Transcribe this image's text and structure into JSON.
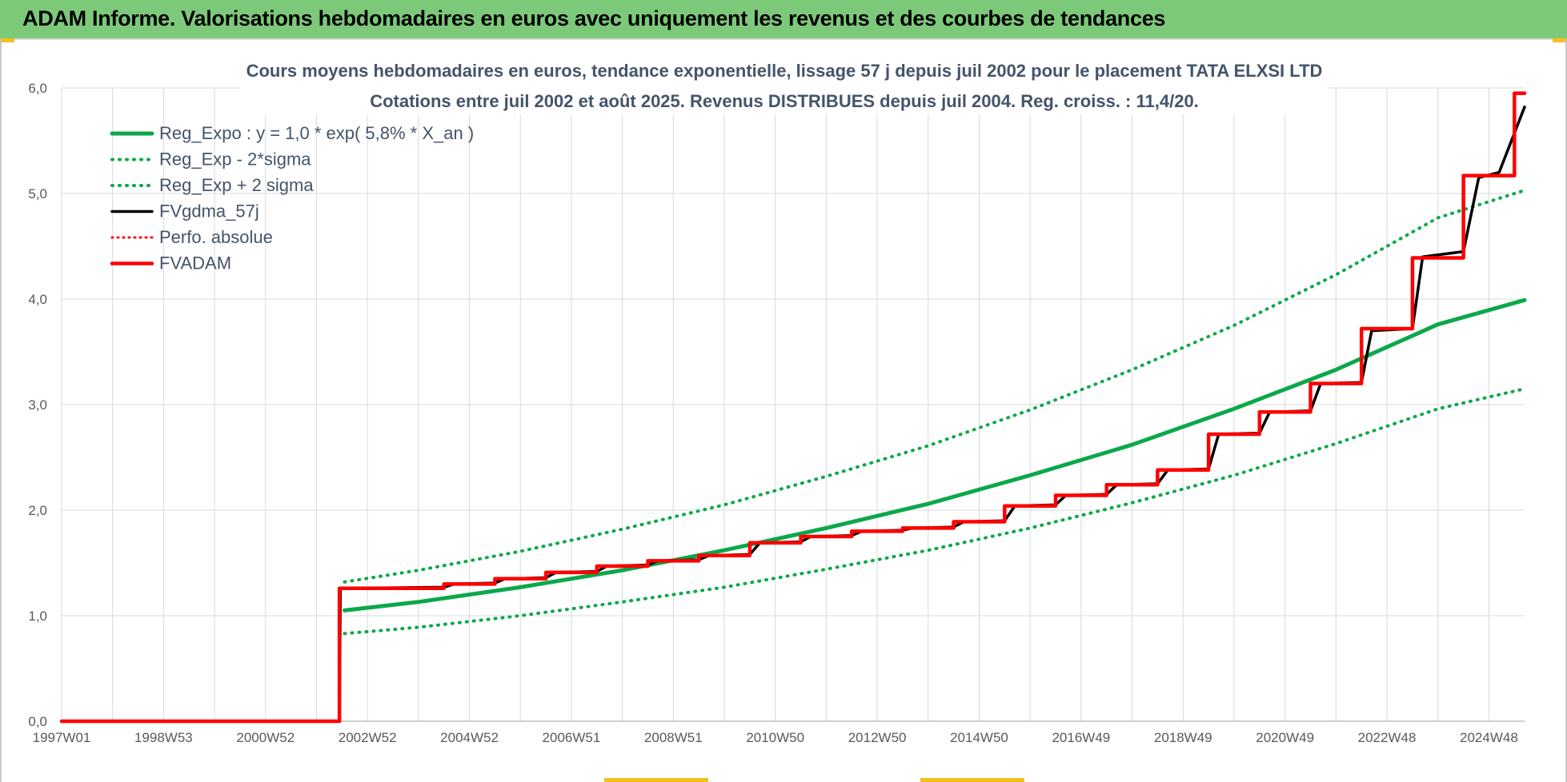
{
  "banner": {
    "title": "ADAM Informe. Valorisations hebdomadaires en euros avec uniquement les revenus et des courbes de tendances"
  },
  "colors": {
    "banner_bg": "#7dc97a",
    "green": "#0ba84a",
    "black": "#000000",
    "red": "#ff0000",
    "grid": "#d9d9d9",
    "title": "#44546a"
  },
  "chart_data": {
    "type": "line",
    "title": "Cours moyens hebdomadaires en euros, tendance exponentielle, lissage 57 j depuis juil 2002 pour le placement TATA  ELXSI LTD",
    "subtitle": "Cotations entre juil 2002 et août 2025. Revenus DISTRIBUES depuis juil 2004. Reg. croiss. : 11,4/20.",
    "xlabel": "",
    "ylabel": "",
    "x_range": [
      1997.0,
      2025.7
    ],
    "ylim": [
      0,
      6
    ],
    "y_ticks": [
      "0,0",
      "1,0",
      "2,0",
      "3,0",
      "4,0",
      "5,0",
      "6,0"
    ],
    "x_ticks": [
      {
        "label": "1997W01",
        "x": 1997.0
      },
      {
        "label": "1998W53",
        "x": 1999.0
      },
      {
        "label": "2000W52",
        "x": 2001.0
      },
      {
        "label": "2002W52",
        "x": 2003.0
      },
      {
        "label": "2004W52",
        "x": 2005.0
      },
      {
        "label": "2006W51",
        "x": 2007.0
      },
      {
        "label": "2008W51",
        "x": 2009.0
      },
      {
        "label": "2010W50",
        "x": 2011.0
      },
      {
        "label": "2012W50",
        "x": 2013.0
      },
      {
        "label": "2014W50",
        "x": 2015.0
      },
      {
        "label": "2016W49",
        "x": 2017.0
      },
      {
        "label": "2018W49",
        "x": 2019.0
      },
      {
        "label": "2020W49",
        "x": 2021.0
      },
      {
        "label": "2022W48",
        "x": 2023.0
      },
      {
        "label": "2024W48",
        "x": 2025.0
      }
    ],
    "grid": true,
    "legend_position": "top-left",
    "legend": [
      {
        "label": "Reg_Expo : y = 1,0 * exp( 5,8% *  X_an )",
        "color": "#0ba84a",
        "style": "solid"
      },
      {
        "label": "Reg_Exp - 2*sigma",
        "color": "#0ba84a",
        "style": "dotted"
      },
      {
        "label": "Reg_Exp + 2 sigma",
        "color": "#0ba84a",
        "style": "dotted"
      },
      {
        "label": "FVgdma_57j",
        "color": "#000000",
        "style": "solid"
      },
      {
        "label": "Perfo. absolue",
        "color": "#ff0000",
        "style": "dotted"
      },
      {
        "label": "FVADAM",
        "color": "#ff0000",
        "style": "solid"
      }
    ],
    "series": [
      {
        "name": "Reg_Expo : y = 1,0 * exp( 5,8% *  X_an )",
        "x": [
          2002.55,
          2004.0,
          2006.0,
          2008.0,
          2010.0,
          2012.0,
          2014.0,
          2016.0,
          2018.0,
          2020.0,
          2022.0,
          2024.0,
          2025.7
        ],
        "values": [
          1.05,
          1.13,
          1.27,
          1.43,
          1.62,
          1.83,
          2.06,
          2.33,
          2.62,
          2.96,
          3.33,
          3.76,
          3.99
        ]
      },
      {
        "name": "Reg_Exp - 2*sigma",
        "x": [
          2002.55,
          2004.0,
          2006.0,
          2008.0,
          2010.0,
          2012.0,
          2014.0,
          2016.0,
          2018.0,
          2020.0,
          2022.0,
          2024.0,
          2025.7
        ],
        "values": [
          0.83,
          0.89,
          1.0,
          1.13,
          1.27,
          1.44,
          1.62,
          1.83,
          2.07,
          2.33,
          2.63,
          2.96,
          3.15
        ]
      },
      {
        "name": "Reg_Exp + 2 sigma",
        "x": [
          2002.55,
          2004.0,
          2006.0,
          2008.0,
          2010.0,
          2012.0,
          2014.0,
          2016.0,
          2018.0,
          2020.0,
          2022.0,
          2024.0,
          2025.7
        ],
        "values": [
          1.32,
          1.43,
          1.61,
          1.82,
          2.05,
          2.32,
          2.61,
          2.95,
          3.33,
          3.75,
          4.23,
          4.77,
          5.03
        ]
      },
      {
        "name": "FVgdma_57j",
        "x": [
          1997.0,
          2002.45,
          2002.47,
          2004.5,
          2004.7,
          2005.5,
          2005.7,
          2006.5,
          2006.7,
          2007.5,
          2007.7,
          2008.5,
          2008.7,
          2009.5,
          2009.7,
          2010.5,
          2010.7,
          2011.5,
          2011.7,
          2012.5,
          2012.7,
          2013.5,
          2013.7,
          2014.5,
          2014.7,
          2015.5,
          2015.7,
          2016.5,
          2016.7,
          2017.5,
          2017.7,
          2018.5,
          2018.7,
          2019.5,
          2019.7,
          2020.5,
          2020.7,
          2021.5,
          2021.7,
          2022.5,
          2022.7,
          2023.5,
          2023.7,
          2024.5,
          2024.8,
          2025.2,
          2025.7
        ],
        "values": [
          0.0,
          0.0,
          1.26,
          1.27,
          1.3,
          1.31,
          1.35,
          1.36,
          1.41,
          1.42,
          1.47,
          1.48,
          1.52,
          1.53,
          1.57,
          1.58,
          1.69,
          1.7,
          1.75,
          1.76,
          1.8,
          1.81,
          1.83,
          1.84,
          1.89,
          1.9,
          2.04,
          2.05,
          2.14,
          2.15,
          2.24,
          2.25,
          2.38,
          2.39,
          2.72,
          2.73,
          2.93,
          2.94,
          3.2,
          3.21,
          3.7,
          3.72,
          4.4,
          4.45,
          5.15,
          5.2,
          5.82
        ]
      },
      {
        "name": "Perfo. absolue",
        "x": [],
        "values": []
      },
      {
        "name": "FVADAM",
        "x": [
          1997.0,
          2002.45,
          2002.45,
          2004.5,
          2004.5,
          2005.5,
          2005.5,
          2006.5,
          2006.5,
          2007.5,
          2007.5,
          2008.5,
          2008.5,
          2009.5,
          2009.5,
          2010.5,
          2010.5,
          2011.5,
          2011.5,
          2012.5,
          2012.5,
          2013.5,
          2013.5,
          2014.5,
          2014.5,
          2015.5,
          2015.5,
          2016.5,
          2016.5,
          2017.5,
          2017.5,
          2018.5,
          2018.5,
          2019.5,
          2019.5,
          2020.5,
          2020.5,
          2021.5,
          2021.5,
          2022.5,
          2022.5,
          2023.5,
          2023.5,
          2024.5,
          2024.5,
          2025.5,
          2025.5,
          2025.7
        ],
        "values": [
          0.0,
          0.0,
          1.26,
          1.26,
          1.3,
          1.3,
          1.35,
          1.35,
          1.41,
          1.41,
          1.47,
          1.47,
          1.52,
          1.52,
          1.57,
          1.57,
          1.69,
          1.69,
          1.75,
          1.75,
          1.8,
          1.8,
          1.83,
          1.83,
          1.89,
          1.89,
          2.04,
          2.04,
          2.14,
          2.14,
          2.24,
          2.24,
          2.38,
          2.38,
          2.72,
          2.72,
          2.93,
          2.93,
          3.2,
          3.2,
          3.72,
          3.72,
          4.39,
          4.39,
          5.17,
          5.17,
          5.95,
          5.95
        ]
      }
    ]
  }
}
